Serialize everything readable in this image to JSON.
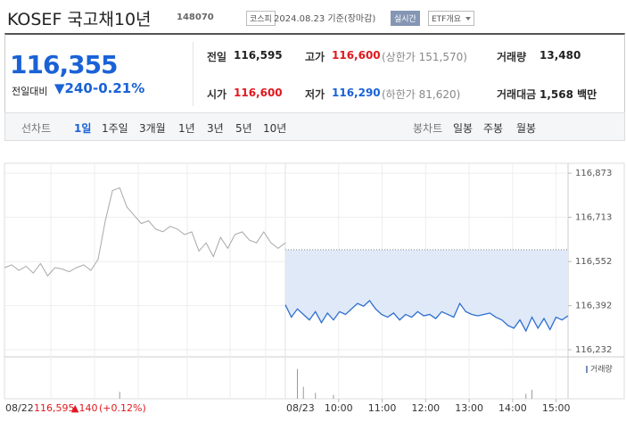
{
  "header": {
    "name": "KOSEF 국고채10년",
    "code": "148070",
    "market": "코스피",
    "date": "2024.08.23 기준(장마감)",
    "realtime": "실시간",
    "menu": "ETF개요"
  },
  "quote": {
    "price": "116,355",
    "change_label": "전일대비",
    "change": "▼240",
    "change_rate": "-0.21%",
    "items": [
      {
        "label": "전일",
        "value": "116,595"
      },
      {
        "label": "고가",
        "value": "116,600",
        "sub": "(상한가 151,570)",
        "color": "#e0181e"
      },
      {
        "label": "거래량",
        "value": "13,480"
      },
      {
        "label": "시가",
        "value": "116,600",
        "color": "#e0181e"
      },
      {
        "label": "저가",
        "value": "116,290",
        "sub": "(하한가 81,620)",
        "color": "#1a62d6"
      },
      {
        "label": "거래대금",
        "value": "1,568 백만"
      }
    ]
  },
  "tabs": {
    "line_label": "선차트",
    "line": [
      "1일",
      "1주일",
      "3개월",
      "1년",
      "3년",
      "5년",
      "10년"
    ],
    "active": 0,
    "candle_label": "봉차트",
    "candle": [
      "일봉",
      "주봉",
      "월봉"
    ]
  },
  "chart_data": {
    "type": "line",
    "ylim": [
      116206,
      116909
    ],
    "yticks": [
      {
        "value": 116873,
        "label": "116,873"
      },
      {
        "value": 116713,
        "label": "116,713"
      },
      {
        "value": 116552,
        "label": "116,552"
      },
      {
        "value": 116392,
        "label": "116,392"
      },
      {
        "value": 116232,
        "label": "116,232"
      }
    ],
    "prev_close": 116595,
    "series": [
      {
        "color": "#a8a8a8",
        "values": [
          116530,
          116540,
          116520,
          116535,
          116510,
          116545,
          116500,
          116530,
          116525,
          116515,
          116530,
          116540,
          116520,
          116560,
          116700,
          116810,
          116820,
          116750,
          116720,
          116690,
          116700,
          116670,
          116660,
          116680,
          116670,
          116650,
          116660,
          116590,
          116620,
          116570,
          116640,
          116600,
          116650,
          116660,
          116630,
          116620,
          116660,
          116620,
          116600,
          116620
        ]
      },
      {
        "color": "#2f6fd0",
        "values": [
          116395,
          116350,
          116380,
          116360,
          116340,
          116370,
          116330,
          116365,
          116340,
          116370,
          116360,
          116380,
          116400,
          116390,
          116410,
          116380,
          116360,
          116350,
          116365,
          116340,
          116360,
          116350,
          116370,
          116355,
          116360,
          116345,
          116370,
          116360,
          116350,
          116400,
          116370,
          116360,
          116355,
          116360,
          116365,
          116350,
          116340,
          116320,
          116310,
          116340,
          116300,
          116350,
          116310,
          116345,
          116305,
          116350,
          116340,
          116355
        ]
      }
    ],
    "volume": {
      "label": "거래량",
      "ylim": [
        0,
        3500
      ],
      "series": [
        {
          "values": [
            0,
            0,
            0,
            0,
            0,
            0,
            0,
            0,
            0,
            0,
            0,
            0,
            0,
            0,
            0,
            0,
            700,
            0,
            0,
            0,
            0,
            0,
            0,
            0,
            0,
            0,
            0,
            0,
            0,
            0,
            0,
            0,
            0,
            0,
            0,
            0,
            0,
            0,
            0,
            0
          ]
        },
        {
          "values": [
            0,
            0,
            3000,
            1200,
            0,
            600,
            0,
            0,
            400,
            0,
            0,
            0,
            0,
            0,
            0,
            0,
            0,
            0,
            0,
            0,
            0,
            0,
            0,
            0,
            0,
            0,
            0,
            0,
            0,
            0,
            0,
            0,
            0,
            0,
            0,
            0,
            0,
            0,
            0,
            0,
            500,
            900,
            0,
            0,
            0,
            0,
            0,
            0
          ]
        }
      ]
    },
    "xticks": [
      {
        "value": 60,
        "label": "10:00"
      },
      {
        "value": 120,
        "label": "11:00"
      },
      {
        "value": 180,
        "label": "12:00"
      },
      {
        "value": 240,
        "label": "13:00"
      },
      {
        "value": 300,
        "label": "14:00"
      },
      {
        "value": 360,
        "label": "15:00"
      }
    ],
    "date": "08/23",
    "prev_day": {
      "date": "08/22",
      "close": "116,595",
      "change": "▲140",
      "rate": "(+0.12%)"
    }
  }
}
